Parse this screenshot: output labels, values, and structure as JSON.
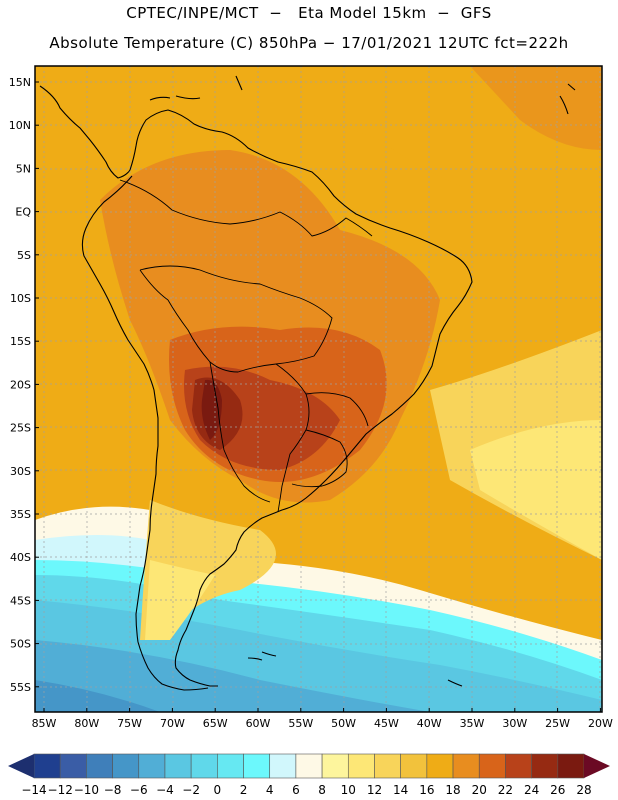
{
  "header": {
    "line1": "CPTEC/INPE/MCT  −   Eta Model 15km  −  GFS",
    "line2": "Absolute Temperature (C) 850hPa − 17/01/2021 12UTC fct=222h"
  },
  "map": {
    "lat_labels": [
      "15N",
      "10N",
      "5N",
      "EQ",
      "5S",
      "10S",
      "15S",
      "20S",
      "25S",
      "30S",
      "35S",
      "40S",
      "45S",
      "50S",
      "55S"
    ],
    "lon_labels": [
      "85W",
      "80W",
      "75W",
      "70W",
      "65W",
      "60W",
      "55W",
      "50W",
      "45W",
      "40W",
      "35W",
      "30W",
      "25W",
      "20W"
    ],
    "lat_range": [
      17.2,
      -58.1
    ],
    "lon_range": [
      -85.2,
      -20.0
    ]
  },
  "colorbar": {
    "labels": [
      "-14",
      "-12",
      "-10",
      "-8",
      "-6",
      "-4",
      "-2",
      "0",
      "2",
      "4",
      "6",
      "8",
      "10",
      "12",
      "14",
      "16",
      "18",
      "20",
      "22",
      "24",
      "26",
      "28"
    ],
    "colors": [
      "#1f3f8f",
      "#3a5da6",
      "#3f7fba",
      "#4596c8",
      "#51aed6",
      "#5ac7e2",
      "#60d8ea",
      "#66e8f2",
      "#6cf8fc",
      "#d1f7fc",
      "#fef9e6",
      "#fdf59d",
      "#fde776",
      "#f8d45a",
      "#f2c23c",
      "#efac16",
      "#e88d1f",
      "#d8641a",
      "#b8421a",
      "#962a12",
      "#7a1a10"
    ],
    "low_arrow_color": "#1d2f6f",
    "high_arrow_color": "#6b0a24"
  }
}
